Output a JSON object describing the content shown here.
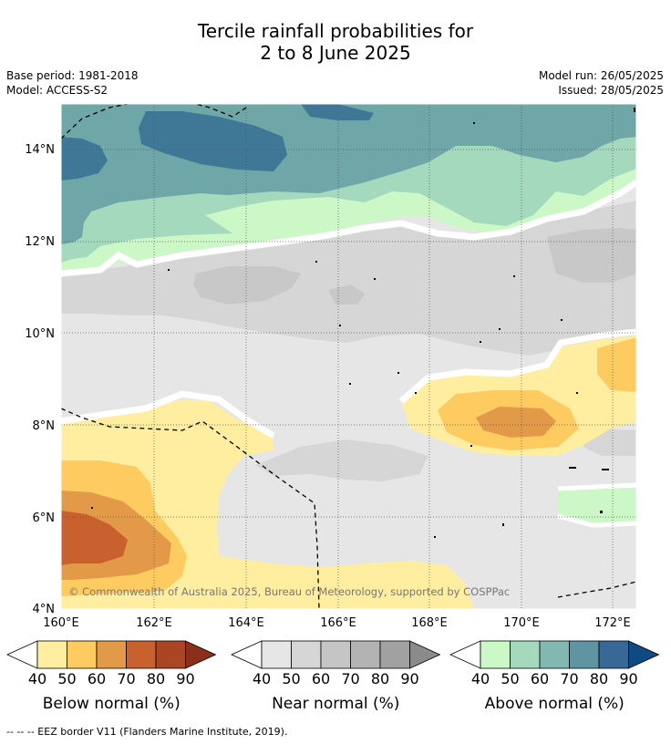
{
  "header": {
    "title_line1": "Tercile rainfall probabilities for",
    "title_line2": "2 to 8 June 2025",
    "base_period": "Base period: 1981-2018",
    "model": "Model: ACCESS-S2",
    "model_run": "Model run: 26/05/2025",
    "issued": "Issued: 28/05/2025"
  },
  "map": {
    "lat_labels": [
      "14°N",
      "12°N",
      "10°N",
      "8°N",
      "6°N",
      "4°N"
    ],
    "lon_labels": [
      "160°E",
      "162°E",
      "164°E",
      "166°E",
      "168°E",
      "170°E",
      "172°E"
    ],
    "copyright": "© Commonwealth of Australia 2025, Bureau of Meteorology, supported by COSPPac"
  },
  "colorbars": [
    {
      "name": "below",
      "title": "Below normal (%)",
      "ticks": [
        "40",
        "50",
        "60",
        "70",
        "80",
        "90"
      ],
      "colors": [
        "#ffeda0",
        "#fecb61",
        "#e39a48",
        "#c9612f",
        "#ab4624",
        "#8c2f1a"
      ]
    },
    {
      "name": "near",
      "title": "Near normal (%)",
      "ticks": [
        "40",
        "50",
        "60",
        "70",
        "80",
        "90"
      ],
      "colors": [
        "#e6e6e6",
        "#d6d6d6",
        "#c5c5c5",
        "#b3b3b3",
        "#a1a1a1",
        "#8a8a8a"
      ]
    },
    {
      "name": "above",
      "title": "Above normal (%)",
      "ticks": [
        "40",
        "50",
        "60",
        "70",
        "80",
        "90"
      ],
      "colors": [
        "#ccf8c7",
        "#a5d9bd",
        "#82b8b2",
        "#5f94a3",
        "#386896",
        "#0f4a82"
      ]
    }
  ],
  "footnote": "--  --  -- EEZ border V11 (Flanders Marine Institute, 2019)."
}
